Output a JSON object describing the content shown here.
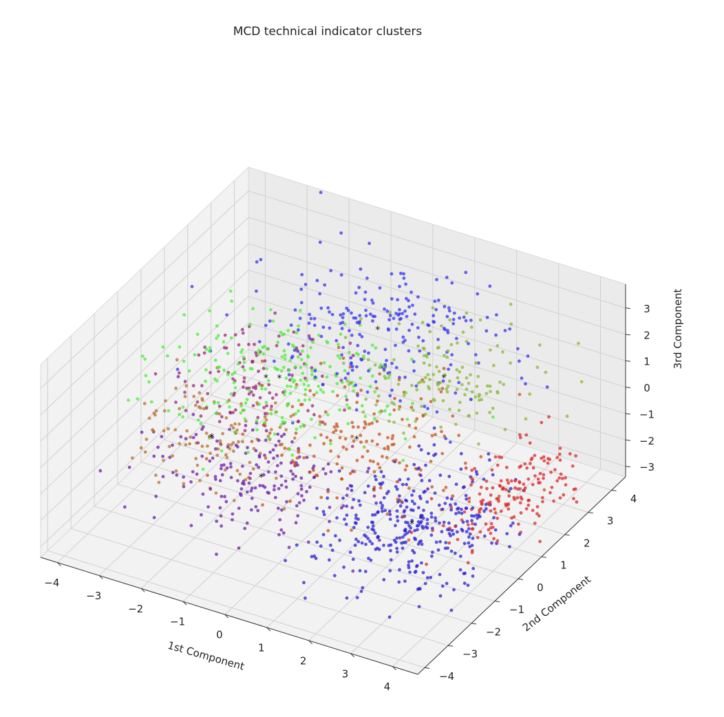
{
  "chart_data": {
    "type": "scatter",
    "projection": "3d",
    "title": "MCD technical indicator clusters",
    "xlabel": "1st Component",
    "ylabel": "2nd Component",
    "zlabel": "3rd Component",
    "xlim": [
      -4.4,
      4.6
    ],
    "ylim": [
      -4.3,
      4.6
    ],
    "zlim": [
      -3.4,
      3.9
    ],
    "xticks": [
      -4,
      -3,
      -2,
      -1,
      0,
      1,
      2,
      3,
      4
    ],
    "yticks": [
      -4,
      -3,
      -2,
      -1,
      0,
      1,
      2,
      3,
      4
    ],
    "zticks": [
      -3,
      -2,
      -1,
      0,
      1,
      2,
      3
    ],
    "tick_labels": {
      "x": [
        "−4",
        "−3",
        "−2",
        "−1",
        "0",
        "1",
        "2",
        "3",
        "4"
      ],
      "y": [
        "−4",
        "−3",
        "−2",
        "−1",
        "0",
        "1",
        "2",
        "3",
        "4"
      ],
      "z": [
        "−3",
        "−2",
        "−1",
        "0",
        "1",
        "2",
        "3"
      ]
    },
    "grid": true,
    "marker_alpha": 0.75,
    "series": [
      {
        "color": "#2a1fd0",
        "center": [
          2.4,
          -0.6,
          -1.9
        ],
        "spread": [
          0.9,
          1.1,
          0.55
        ],
        "count": 340
      },
      {
        "color": "#d92a2a",
        "center": [
          3.6,
          1.4,
          -1.8
        ],
        "spread": [
          0.55,
          1.0,
          0.55
        ],
        "count": 170
      },
      {
        "color": "#6b1fa8",
        "center": [
          -1.2,
          -0.6,
          -1.9
        ],
        "spread": [
          1.2,
          1.0,
          0.55
        ],
        "count": 190
      },
      {
        "color": "#c7531c",
        "center": [
          0.3,
          0.8,
          -0.9
        ],
        "spread": [
          1.3,
          1.2,
          0.5
        ],
        "count": 180
      },
      {
        "color": "#b87030",
        "center": [
          -2.6,
          -0.2,
          -1.4
        ],
        "spread": [
          0.9,
          0.9,
          0.6
        ],
        "count": 110
      },
      {
        "color": "#9a2a7a",
        "center": [
          -2.2,
          1.4,
          -0.3
        ],
        "spread": [
          1.0,
          1.0,
          0.6
        ],
        "count": 110
      },
      {
        "color": "#4dee3a",
        "center": [
          -1.6,
          0.9,
          0.4
        ],
        "spread": [
          1.3,
          1.2,
          0.6
        ],
        "count": 230
      },
      {
        "color": "#8ab83a",
        "center": [
          1.6,
          2.2,
          0.9
        ],
        "spread": [
          1.1,
          1.0,
          0.45
        ],
        "count": 140
      },
      {
        "color": "#3333f0",
        "center": [
          -0.2,
          2.6,
          1.5
        ],
        "spread": [
          1.4,
          1.1,
          0.8
        ],
        "count": 230
      }
    ],
    "cluster_markers": {
      "marker": "*",
      "color": "#111111"
    }
  }
}
